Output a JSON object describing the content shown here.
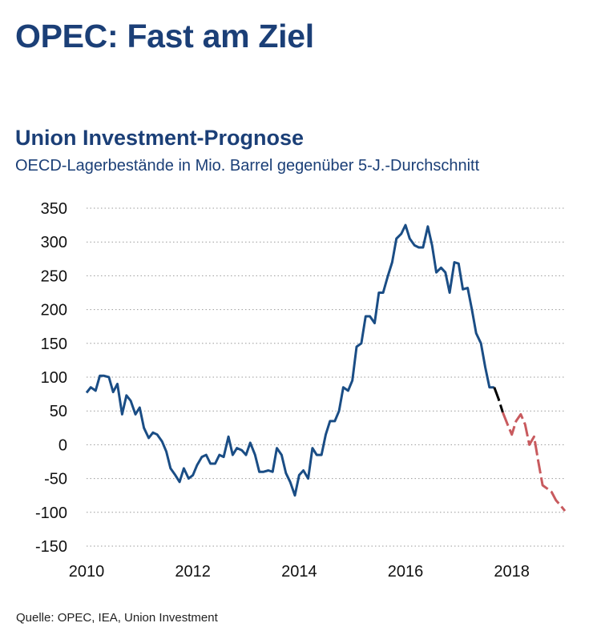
{
  "page": {
    "title": "OPEC: Fast am Ziel",
    "source": "Quelle: OPEC, IEA, Union Investment"
  },
  "chart_data": {
    "type": "line",
    "title": "Union Investment-Prognose",
    "subtitle": "OECD-Lagerbestände in Mio. Barrel gegenüber 5-J.-Durchschnitt",
    "xlabel": "",
    "ylabel": "",
    "xlim": [
      2010,
      2019
    ],
    "ylim": [
      -150,
      350
    ],
    "x_ticks": [
      2010,
      2012,
      2014,
      2016,
      2018
    ],
    "y_ticks": [
      350,
      300,
      250,
      200,
      150,
      100,
      50,
      0,
      -50,
      -100,
      -150
    ],
    "grid": "horizontal dotted",
    "legend": "none",
    "colors": {
      "history": "#1a4d85",
      "transition": "#000000",
      "forecast": "#c85a5e",
      "title": "#1b3f77"
    },
    "series": [
      {
        "style": "solid",
        "x": [
          2010.0,
          2010.08,
          2010.17,
          2010.25,
          2010.33,
          2010.42,
          2010.5,
          2010.58,
          2010.67,
          2010.75,
          2010.83,
          2010.92,
          2011.0,
          2011.08,
          2011.17,
          2011.25,
          2011.33,
          2011.42,
          2011.5,
          2011.58,
          2011.67,
          2011.75,
          2011.83,
          2011.92,
          2012.0,
          2012.08,
          2012.17,
          2012.25,
          2012.33,
          2012.42,
          2012.5,
          2012.58,
          2012.67,
          2012.75,
          2012.83,
          2012.92,
          2013.0,
          2013.08,
          2013.17,
          2013.25,
          2013.33,
          2013.42,
          2013.5,
          2013.58,
          2013.67,
          2013.75,
          2013.83,
          2013.92,
          2014.0,
          2014.08,
          2014.17,
          2014.25,
          2014.33,
          2014.42,
          2014.5,
          2014.58,
          2014.67,
          2014.75,
          2014.83,
          2014.92,
          2015.0,
          2015.08,
          2015.17,
          2015.25,
          2015.33,
          2015.42,
          2015.5,
          2015.58,
          2015.67,
          2015.75,
          2015.83,
          2015.92,
          2016.0,
          2016.08,
          2016.17,
          2016.25,
          2016.33,
          2016.42,
          2016.5,
          2016.58,
          2016.67,
          2016.75,
          2016.83,
          2016.92,
          2017.0,
          2017.08,
          2017.17,
          2017.25,
          2017.33,
          2017.42,
          2017.5,
          2017.58,
          2017.67
        ],
        "y": [
          77,
          85,
          80,
          102,
          102,
          100,
          78,
          90,
          45,
          73,
          65,
          45,
          55,
          25,
          10,
          18,
          15,
          5,
          -10,
          -35,
          -45,
          -55,
          -35,
          -50,
          -45,
          -30,
          -18,
          -15,
          -28,
          -28,
          -15,
          -18,
          12,
          -15,
          -5,
          -8,
          -15,
          3,
          -15,
          -40,
          -40,
          -38,
          -40,
          -5,
          -15,
          -42,
          -55,
          -75,
          -45,
          -38,
          -50,
          -5,
          -15,
          -15,
          15,
          35,
          35,
          50,
          85,
          80,
          95,
          145,
          150,
          190,
          190,
          180,
          225,
          225,
          250,
          270,
          305,
          312,
          325,
          305,
          295,
          292,
          292,
          323,
          295,
          255,
          262,
          255,
          225,
          270,
          268,
          230,
          232,
          200,
          165,
          150,
          115,
          85,
          85
        ]
      },
      {
        "style": "dashed",
        "x": [
          2017.67,
          2017.75,
          2017.83
        ],
        "y": [
          85,
          68,
          48
        ]
      },
      {
        "style": "dashed",
        "x": [
          2017.83,
          2017.92,
          2018.0,
          2018.08,
          2018.17,
          2018.25,
          2018.33,
          2018.42,
          2018.5,
          2018.58,
          2018.67,
          2018.75,
          2018.83,
          2018.92,
          2019.0
        ],
        "y": [
          48,
          30,
          15,
          35,
          45,
          30,
          0,
          12,
          -25,
          -60,
          -65,
          -70,
          -82,
          -90,
          -98
        ]
      }
    ]
  }
}
